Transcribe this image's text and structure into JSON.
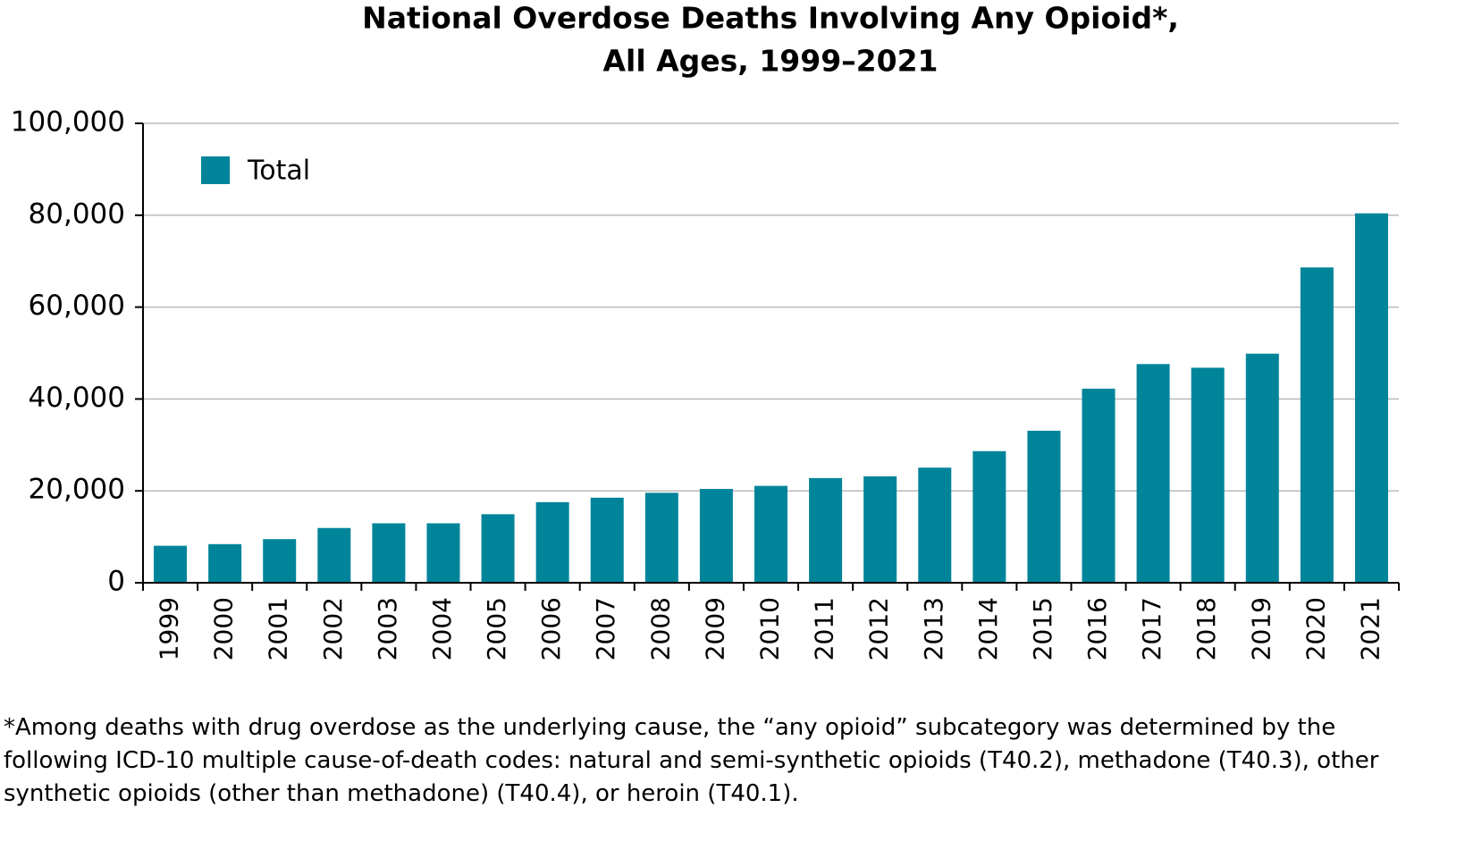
{
  "chart_data": {
    "type": "bar",
    "title": [
      "National Overdose Deaths Involving Any Opioid*,",
      "All Ages, 1999–2021"
    ],
    "categories": [
      "1999",
      "2000",
      "2001",
      "2002",
      "2003",
      "2004",
      "2005",
      "2006",
      "2007",
      "2008",
      "2009",
      "2010",
      "2011",
      "2012",
      "2013",
      "2014",
      "2015",
      "2016",
      "2017",
      "2018",
      "2019",
      "2020",
      "2021"
    ],
    "series": [
      {
        "name": "Total",
        "color": "#00849a",
        "values": [
          8050,
          8407,
          9496,
          11920,
          12940,
          12940,
          14918,
          17545,
          18516,
          19582,
          20422,
          21089,
          22784,
          23166,
          25052,
          28647,
          33091,
          42249,
          47600,
          46802,
          49860,
          68630,
          80411
        ]
      }
    ],
    "ylim": [
      0,
      100000
    ],
    "yticks": [
      0,
      {
        "value": 20000,
        "label": "20,000"
      },
      {
        "value": 40000,
        "label": "40,000"
      },
      {
        "value": 60000,
        "label": "60,000"
      },
      {
        "value": 80000,
        "label": "80,000"
      },
      {
        "value": 100000,
        "label": "100,000"
      }
    ],
    "grid": true,
    "legend": "top-left",
    "note": "*Among deaths with drug overdose as the underlying cause, the “any opioid”  subcategory was determined by the following ICD-10 multiple cause-of-death codes: natural and semi-synthetic opioids (T40.2), methadone (T40.3), other synthetic opioids (other than methadone) (T40.4), or heroin (T40.1)."
  }
}
